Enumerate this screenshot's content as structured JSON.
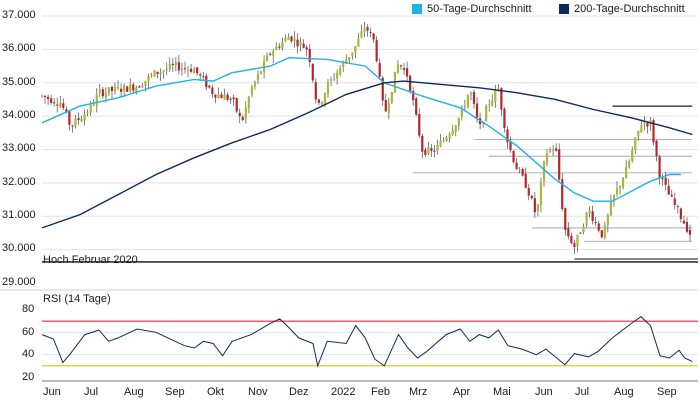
{
  "chart_data": [
    {
      "type": "candlestick",
      "title": "",
      "xlabel": "",
      "ylabel": "",
      "ylim": [
        29000,
        37000
      ],
      "y_ticks": [
        "37.000",
        "36.000",
        "35.000",
        "34.000",
        "33.000",
        "32.000",
        "31.000",
        "30.000",
        "29.000"
      ],
      "x_ticks": [
        "Jun",
        "Jul",
        "Aug",
        "Sep",
        "Okt",
        "Nov",
        "Dez",
        "2022",
        "Feb",
        "Mrz",
        "Apr",
        "Mai",
        "Jun",
        "Jul",
        "Aug",
        "Sep"
      ],
      "legend": {
        "position": "top-right"
      },
      "series": [
        {
          "name": "50-Tage-Durchschnitt",
          "color": "#1fb2e8",
          "values": [
            [
              0,
              33800
            ],
            [
              40,
              34300
            ],
            [
              80,
              34550
            ],
            [
              120,
              34900
            ],
            [
              160,
              35100
            ],
            [
              180,
              35050
            ],
            [
              200,
              35300
            ],
            [
              240,
              35500
            ],
            [
              260,
              35750
            ],
            [
              300,
              35700
            ],
            [
              340,
              35500
            ],
            [
              360,
              35000
            ],
            [
              400,
              34600
            ],
            [
              440,
              34250
            ],
            [
              470,
              33700
            ],
            [
              500,
              33100
            ],
            [
              520,
              32600
            ],
            [
              540,
              32100
            ],
            [
              560,
              31700
            ],
            [
              580,
              31450
            ],
            [
              600,
              31450
            ],
            [
              620,
              31750
            ],
            [
              640,
              32050
            ],
            [
              660,
              32250
            ],
            [
              672,
              32250
            ]
          ]
        },
        {
          "name": "200-Tage-Durchschnitt",
          "color": "#0d2a5e",
          "values": [
            [
              0,
              30650
            ],
            [
              40,
              31050
            ],
            [
              80,
              31650
            ],
            [
              120,
              32250
            ],
            [
              160,
              32750
            ],
            [
              200,
              33200
            ],
            [
              240,
              33600
            ],
            [
              280,
              34100
            ],
            [
              320,
              34650
            ],
            [
              360,
              35000
            ],
            [
              380,
              35050
            ],
            [
              420,
              34950
            ],
            [
              460,
              34850
            ],
            [
              500,
              34700
            ],
            [
              540,
              34500
            ],
            [
              580,
              34200
            ],
            [
              620,
              33950
            ],
            [
              660,
              33650
            ],
            [
              684,
              33450
            ]
          ]
        }
      ],
      "price_path": [
        [
          0,
          34600
        ],
        [
          20,
          34400
        ],
        [
          30,
          33700
        ],
        [
          50,
          34200
        ],
        [
          60,
          34700
        ],
        [
          80,
          34800
        ],
        [
          100,
          34900
        ],
        [
          120,
          35300
        ],
        [
          140,
          35500
        ],
        [
          160,
          35400
        ],
        [
          180,
          34700
        ],
        [
          200,
          34500
        ],
        [
          210,
          33800
        ],
        [
          220,
          34800
        ],
        [
          240,
          35900
        ],
        [
          260,
          36400
        ],
        [
          280,
          36000
        ],
        [
          290,
          34200
        ],
        [
          300,
          34900
        ],
        [
          310,
          35300
        ],
        [
          330,
          36100
        ],
        [
          340,
          36700
        ],
        [
          350,
          36200
        ],
        [
          360,
          34000
        ],
        [
          375,
          35600
        ],
        [
          385,
          35200
        ],
        [
          400,
          33000
        ],
        [
          410,
          32900
        ],
        [
          420,
          33200
        ],
        [
          440,
          34000
        ],
        [
          450,
          34800
        ],
        [
          460,
          33600
        ],
        [
          470,
          34400
        ],
        [
          480,
          34800
        ],
        [
          490,
          33200
        ],
        [
          500,
          32400
        ],
        [
          510,
          31900
        ],
        [
          520,
          31000
        ],
        [
          530,
          32900
        ],
        [
          540,
          33100
        ],
        [
          550,
          30600
        ],
        [
          560,
          30100
        ],
        [
          575,
          31200
        ],
        [
          590,
          30400
        ],
        [
          600,
          31500
        ],
        [
          615,
          32400
        ],
        [
          630,
          33800
        ],
        [
          640,
          33800
        ],
        [
          650,
          32200
        ],
        [
          660,
          31600
        ],
        [
          670,
          31100
        ],
        [
          685,
          30300
        ]
      ],
      "reference_lines": [
        30250,
        30650,
        32300,
        32800,
        33300,
        34300
      ],
      "annotation": "Hoch Februar 2020"
    },
    {
      "type": "line",
      "title": "RSI (14 Tage)",
      "xlabel": "",
      "ylabel": "",
      "ylim": [
        20,
        80
      ],
      "y_ticks": [
        "80",
        "60",
        "40",
        "20"
      ],
      "thresholds": [
        {
          "value": 70,
          "color": "#e8293b"
        },
        {
          "value": 30,
          "color": "#c9d100"
        }
      ],
      "series": [
        {
          "name": "",
          "color": "#0d2a5e",
          "values": [
            [
              0,
              58
            ],
            [
              12,
              54
            ],
            [
              22,
              33
            ],
            [
              30,
              41
            ],
            [
              45,
              58
            ],
            [
              60,
              62
            ],
            [
              70,
              52
            ],
            [
              80,
              55
            ],
            [
              100,
              63
            ],
            [
              120,
              60
            ],
            [
              140,
              52
            ],
            [
              150,
              48
            ],
            [
              160,
              46
            ],
            [
              170,
              52
            ],
            [
              180,
              50
            ],
            [
              190,
              39
            ],
            [
              200,
              52
            ],
            [
              220,
              58
            ],
            [
              240,
              68
            ],
            [
              250,
              72
            ],
            [
              260,
              64
            ],
            [
              270,
              55
            ],
            [
              285,
              50
            ],
            [
              290,
              30
            ],
            [
              300,
              52
            ],
            [
              320,
              50
            ],
            [
              330,
              66
            ],
            [
              340,
              55
            ],
            [
              350,
              36
            ],
            [
              360,
              30
            ],
            [
              375,
              58
            ],
            [
              385,
              46
            ],
            [
              395,
              37
            ],
            [
              405,
              43
            ],
            [
              425,
              58
            ],
            [
              440,
              63
            ],
            [
              450,
              52
            ],
            [
              460,
              58
            ],
            [
              470,
              55
            ],
            [
              480,
              62
            ],
            [
              490,
              48
            ],
            [
              505,
              45
            ],
            [
              520,
              40
            ],
            [
              530,
              45
            ],
            [
              550,
              31
            ],
            [
              560,
              41
            ],
            [
              575,
              38
            ],
            [
              585,
              43
            ],
            [
              600,
              55
            ],
            [
              620,
              68
            ],
            [
              630,
              74
            ],
            [
              640,
              66
            ],
            [
              650,
              39
            ],
            [
              660,
              37
            ],
            [
              670,
              44
            ],
            [
              676,
              37
            ],
            [
              684,
              34
            ]
          ]
        }
      ]
    }
  ],
  "legend_ma50": "50-Tage-Durchschnitt",
  "legend_ma200": "200-Tage-Durchschnitt",
  "hoch_label": "Hoch Februar 2020",
  "rsi_title": "RSI (14 Tage)"
}
